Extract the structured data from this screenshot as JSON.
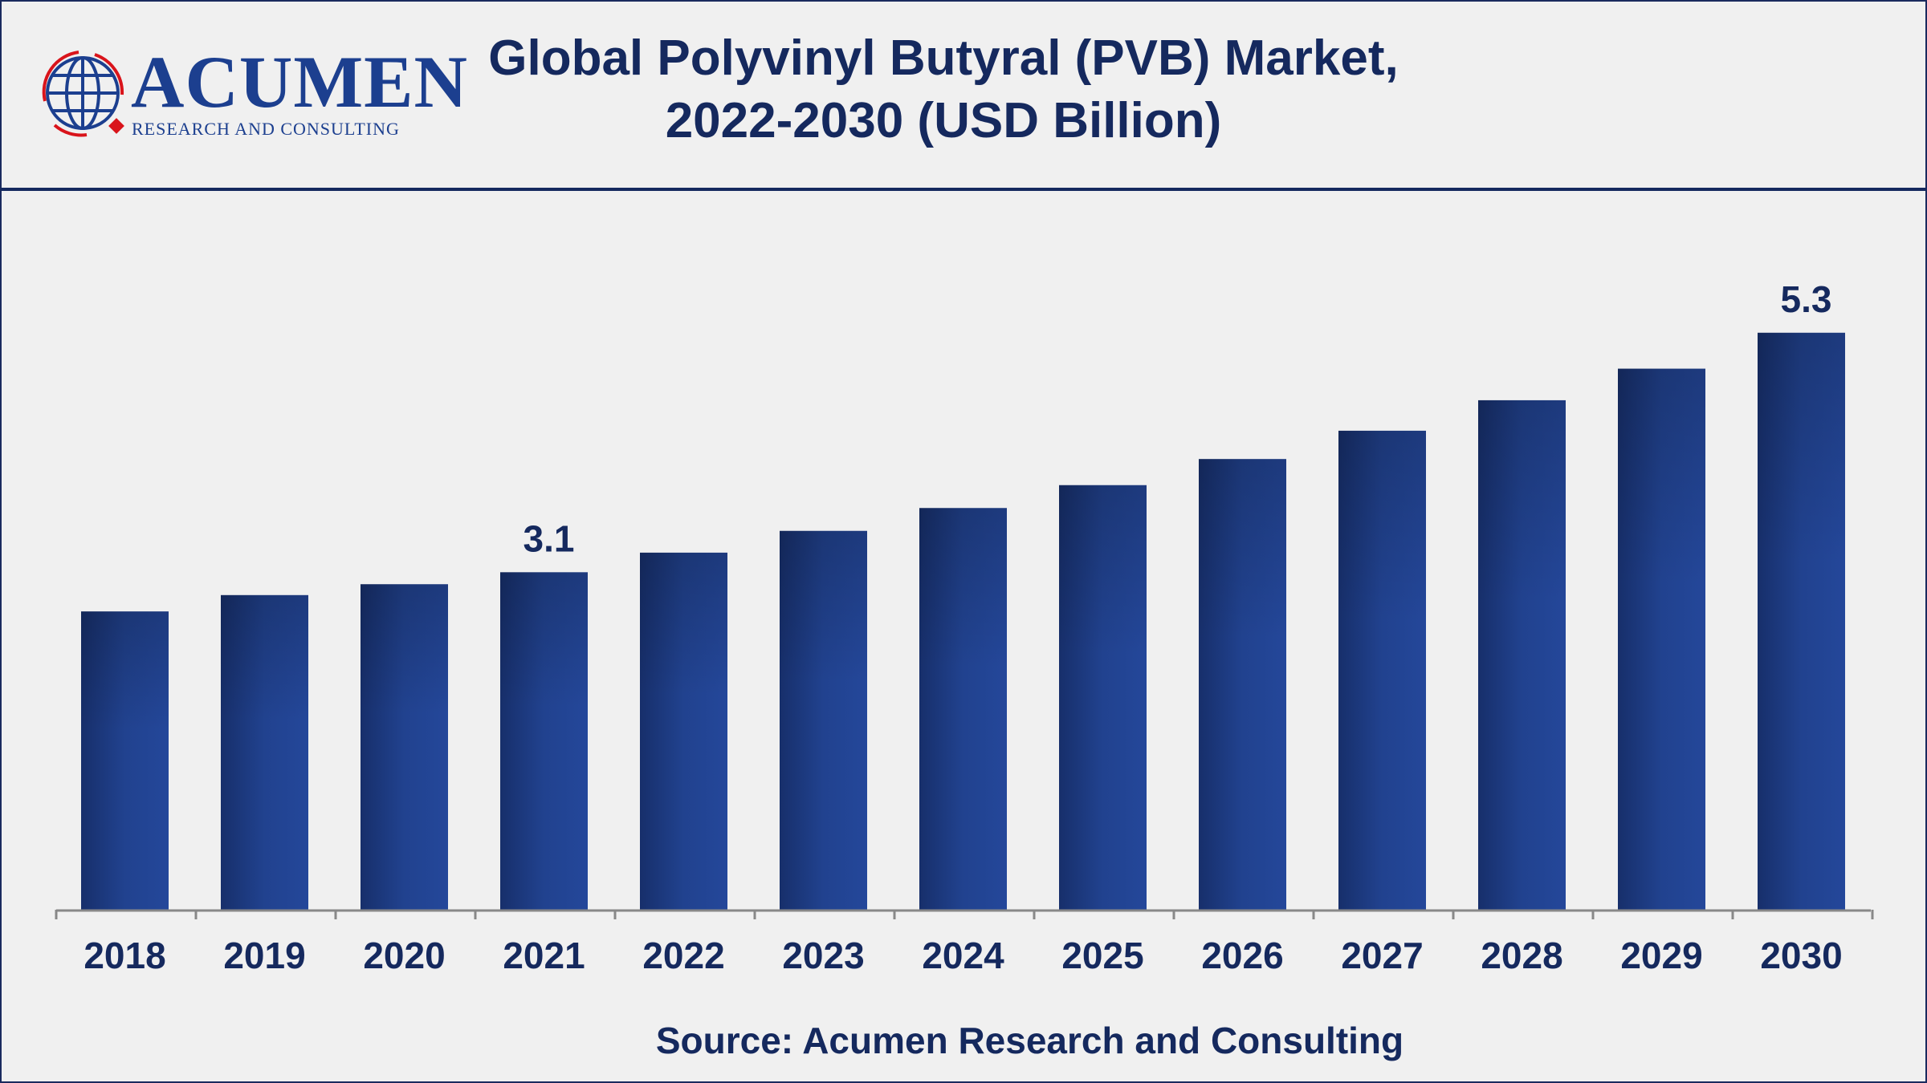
{
  "logo": {
    "word": "ACUMEN",
    "subtitle": "RESEARCH AND CONSULTING"
  },
  "header": {
    "title_line1": "Global Polyvinyl Butyral (PVB) Market,",
    "title_line2": "2022-2030 (USD Billion)"
  },
  "source": "Source: Acumen Research and Consulting",
  "colors": {
    "bar": "#1f3f8a",
    "bar_dark": "#172f6b",
    "text": "#15295e",
    "background": "#f0f0f0",
    "logo_red": "#d9141b"
  },
  "chart_data": {
    "type": "bar",
    "title": "Global Polyvinyl Butyral (PVB) Market, 2022-2030 (USD Billion)",
    "categories": [
      "2018",
      "2019",
      "2020",
      "2021",
      "2022",
      "2023",
      "2024",
      "2025",
      "2026",
      "2027",
      "2028",
      "2029",
      "2030"
    ],
    "values": [
      2.74,
      2.89,
      2.99,
      3.1,
      3.28,
      3.48,
      3.69,
      3.9,
      4.14,
      4.4,
      4.68,
      4.97,
      5.3
    ],
    "data_labels": {
      "2021": "3.1",
      "2030": "5.3"
    },
    "ylim": [
      0,
      6
    ],
    "grid": false,
    "y_axis_visible": false
  }
}
